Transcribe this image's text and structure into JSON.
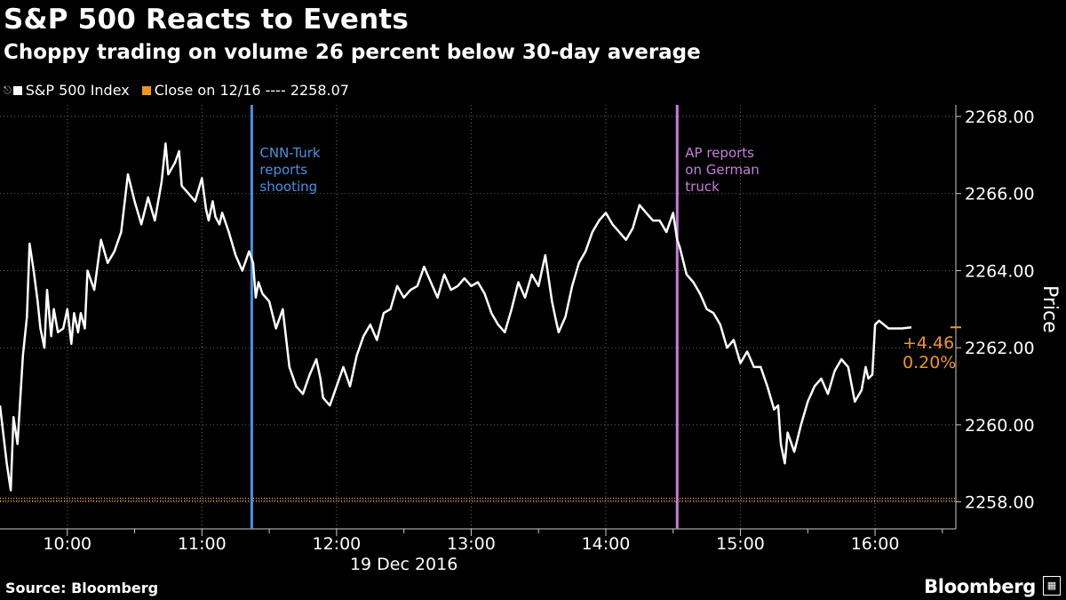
{
  "header": {
    "title": "S&P 500 Reacts to Events",
    "subtitle": "Choppy trading on volume 26 percent below 30-day average"
  },
  "legend": {
    "series_label": "S&P 500 Index",
    "close_label": "Close on 12/16 ---- 2258.07"
  },
  "footer": {
    "source": "Source: Bloomberg",
    "brand": "Bloomberg"
  },
  "colors": {
    "series": "#ffffff",
    "close_line": "#f0961e",
    "event1": "#4a90e2",
    "event2": "#c77ddb",
    "change": "#f0961e"
  },
  "chart_data": {
    "type": "line",
    "title": "S&P 500 Reacts to Events",
    "subtitle": "Choppy trading on volume 26 percent below 30-day average",
    "xlabel": "19 Dec 2016",
    "ylabel": "Price",
    "x_unit": "hours since 00:00",
    "xlim": [
      9.5,
      16.6
    ],
    "ylim": [
      2257.3,
      2268.3
    ],
    "x_ticks": [
      10,
      11,
      12,
      13,
      14,
      15,
      16
    ],
    "x_tick_labels": [
      "10:00",
      "11:00",
      "12:00",
      "13:00",
      "14:00",
      "15:00",
      "16:00"
    ],
    "y_ticks": [
      2258,
      2260,
      2262,
      2264,
      2266,
      2268
    ],
    "y_tick_labels": [
      "2258.00",
      "2260.00",
      "2262.00",
      "2264.00",
      "2266.00",
      "2268.00"
    ],
    "reference_line": {
      "name": "Close on 12/16",
      "value": 2258.07
    },
    "events": [
      {
        "x": 11.37,
        "label": [
          "CNN-Turk",
          "reports",
          "shooting"
        ]
      },
      {
        "x": 14.53,
        "label": [
          "AP reports",
          "on German",
          "truck"
        ]
      }
    ],
    "last_value": 2262.53,
    "change_abs": "+4.46",
    "change_pct": "0.20%",
    "series": [
      {
        "name": "S&P 500 Index",
        "x": [
          9.5,
          9.55,
          9.58,
          9.6,
          9.63,
          9.67,
          9.7,
          9.72,
          9.75,
          9.78,
          9.8,
          9.83,
          9.85,
          9.88,
          9.9,
          9.93,
          9.97,
          10.0,
          10.03,
          10.05,
          10.08,
          10.1,
          10.13,
          10.15,
          10.2,
          10.25,
          10.3,
          10.35,
          10.4,
          10.45,
          10.5,
          10.55,
          10.6,
          10.65,
          10.7,
          10.73,
          10.75,
          10.8,
          10.83,
          10.85,
          10.9,
          10.95,
          11.0,
          11.03,
          11.05,
          11.08,
          11.1,
          11.13,
          11.15,
          11.2,
          11.25,
          11.3,
          11.35,
          11.38,
          11.4,
          11.42,
          11.45,
          11.5,
          11.55,
          11.6,
          11.65,
          11.7,
          11.75,
          11.8,
          11.85,
          11.88,
          11.9,
          11.95,
          12.0,
          12.05,
          12.1,
          12.15,
          12.2,
          12.25,
          12.3,
          12.35,
          12.4,
          12.45,
          12.5,
          12.55,
          12.6,
          12.65,
          12.7,
          12.75,
          12.8,
          12.85,
          12.9,
          12.95,
          13.0,
          13.05,
          13.1,
          13.15,
          13.2,
          13.25,
          13.3,
          13.35,
          13.4,
          13.45,
          13.5,
          13.55,
          13.6,
          13.63,
          13.65,
          13.7,
          13.75,
          13.8,
          13.85,
          13.9,
          13.95,
          14.0,
          14.05,
          14.1,
          14.15,
          14.2,
          14.25,
          14.3,
          14.35,
          14.4,
          14.45,
          14.5,
          14.53,
          14.55,
          14.6,
          14.65,
          14.7,
          14.75,
          14.8,
          14.85,
          14.9,
          14.95,
          15.0,
          15.05,
          15.1,
          15.15,
          15.2,
          15.25,
          15.28,
          15.3,
          15.33,
          15.35,
          15.4,
          15.45,
          15.5,
          15.55,
          15.6,
          15.65,
          15.7,
          15.75,
          15.8,
          15.85,
          15.9,
          15.93,
          15.95,
          15.98,
          16.0,
          16.03,
          16.1,
          16.2,
          16.27
        ],
        "y": [
          2260.5,
          2259.0,
          2258.3,
          2260.2,
          2259.5,
          2261.8,
          2262.8,
          2264.7,
          2264.0,
          2263.2,
          2262.5,
          2262.0,
          2263.5,
          2262.3,
          2263.0,
          2262.4,
          2262.5,
          2263.0,
          2262.1,
          2262.9,
          2262.4,
          2262.9,
          2262.5,
          2264.0,
          2263.5,
          2264.8,
          2264.2,
          2264.5,
          2265.0,
          2266.5,
          2265.8,
          2265.2,
          2265.9,
          2265.3,
          2266.3,
          2267.3,
          2266.5,
          2266.8,
          2267.1,
          2266.2,
          2266.0,
          2265.8,
          2266.4,
          2265.6,
          2265.3,
          2265.8,
          2265.4,
          2265.2,
          2265.5,
          2265.0,
          2264.4,
          2264.0,
          2264.5,
          2264.2,
          2263.3,
          2263.7,
          2263.4,
          2263.2,
          2262.5,
          2263.0,
          2261.5,
          2261.0,
          2260.8,
          2261.3,
          2261.7,
          2261.2,
          2260.7,
          2260.5,
          2261.0,
          2261.5,
          2261.0,
          2261.8,
          2262.3,
          2262.6,
          2262.2,
          2262.9,
          2263.0,
          2263.6,
          2263.3,
          2263.5,
          2263.6,
          2264.1,
          2263.7,
          2263.3,
          2263.9,
          2263.5,
          2263.6,
          2263.8,
          2263.6,
          2263.7,
          2263.4,
          2262.9,
          2262.6,
          2262.4,
          2263.0,
          2263.7,
          2263.3,
          2263.9,
          2263.6,
          2264.4,
          2263.2,
          2262.7,
          2262.4,
          2262.8,
          2263.6,
          2264.2,
          2264.5,
          2265.0,
          2265.3,
          2265.5,
          2265.2,
          2265.0,
          2264.8,
          2265.1,
          2265.7,
          2265.5,
          2265.3,
          2265.3,
          2265.0,
          2265.5,
          2264.8,
          2264.6,
          2263.9,
          2263.7,
          2263.4,
          2263.0,
          2262.9,
          2262.6,
          2262.0,
          2262.2,
          2261.6,
          2261.9,
          2261.5,
          2261.5,
          2261.0,
          2260.4,
          2260.5,
          2259.5,
          2259.0,
          2259.8,
          2259.3,
          2260.0,
          2260.6,
          2261.0,
          2261.2,
          2260.8,
          2261.4,
          2261.7,
          2261.5,
          2260.6,
          2260.9,
          2261.5,
          2261.2,
          2261.3,
          2262.6,
          2262.7,
          2262.5,
          2262.5,
          2262.53
        ]
      }
    ]
  }
}
